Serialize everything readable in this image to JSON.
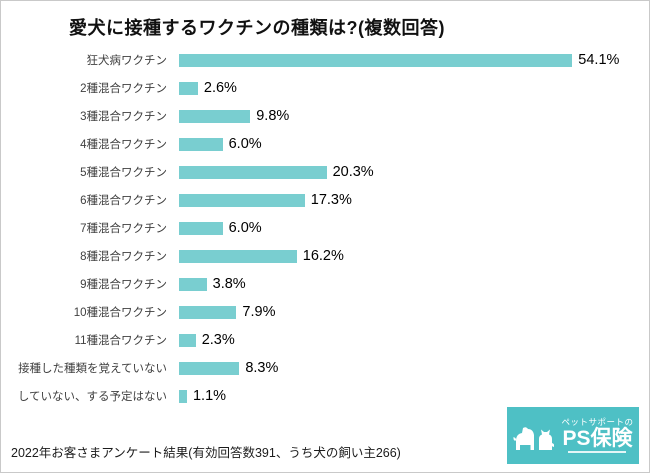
{
  "page": {
    "footer": "2022年お客さまアンケート結果(有効回答数391、うち犬の飼い主266)"
  },
  "logo": {
    "tagline": "ペットサポートの",
    "brand": "PS保険",
    "pets_icon": "dog-and-cat-silhouette-icon",
    "background_color": "#4ec0c5"
  },
  "chart_data": {
    "type": "bar",
    "orientation": "horizontal",
    "title": "愛犬に接種するワクチンの種類は?(複数回答)",
    "categories": [
      "狂犬病ワクチン",
      "2種混合ワクチン",
      "3種混合ワクチン",
      "4種混合ワクチン",
      "5種混合ワクチン",
      "6種混合ワクチン",
      "7種混合ワクチン",
      "8種混合ワクチン",
      "9種混合ワクチン",
      "10種混合ワクチン",
      "11種混合ワクチン",
      "接種した種類を覚えていない",
      "していない、する予定はない"
    ],
    "values": [
      54.1,
      2.6,
      9.8,
      6.0,
      20.3,
      17.3,
      6.0,
      16.2,
      3.8,
      7.9,
      2.3,
      8.3,
      1.1
    ],
    "value_labels": [
      "54.1%",
      "2.6%",
      "9.8%",
      "6.0%",
      "20.3%",
      "17.3%",
      "6.0%",
      "16.2%",
      "3.8%",
      "7.9%",
      "2.3%",
      "8.3%",
      "1.1%"
    ],
    "unit": "%",
    "xlim": [
      0,
      63
    ],
    "bar_color": "#79ced0",
    "grid": false,
    "legend": false
  }
}
